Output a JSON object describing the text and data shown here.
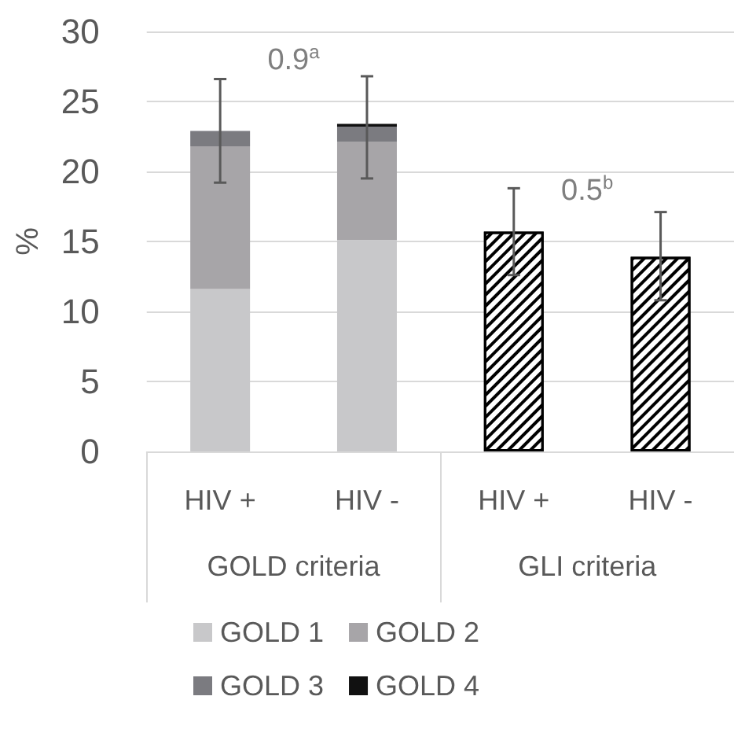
{
  "chart_data": {
    "type": "bar",
    "stacked": true,
    "ylabel": "%",
    "categories": [
      "HIV +",
      "HIV -",
      "HIV +",
      "HIV -"
    ],
    "series": [
      {
        "name": "GOLD 1",
        "color": "#c8c8ca",
        "values": [
          11.6,
          15.1,
          null,
          null
        ]
      },
      {
        "name": "GOLD 2",
        "color": "#a7a5a8",
        "values": [
          10.2,
          7.0,
          null,
          null
        ]
      },
      {
        "name": "GOLD 3",
        "color": "#7b7b80",
        "values": [
          1.1,
          1.1,
          null,
          null
        ]
      },
      {
        "name": "GOLD 4",
        "color": "#111111",
        "values": [
          0,
          0.2,
          null,
          null
        ],
        "errors": [
          [
            19.2,
            26.6
          ],
          [
            19.5,
            26.8
          ],
          null,
          null
        ]
      },
      {
        "color": "#000000",
        "values": [
          null,
          null,
          15.7,
          13.9
        ],
        "errors": [
          null,
          null,
          [
            12.6,
            18.8
          ],
          [
            10.8,
            17.1
          ]
        ]
      }
    ],
    "annotations": [
      "0.9$^{a}$",
      "0.5$^{b}$",
      "GOLD criteria",
      "GLI criteria"
    ],
    "ylim": [
      0,
      30
    ],
    "yticks": [
      0,
      5,
      10,
      15,
      20,
      25,
      30
    ],
    "grid": "y",
    "legend": "bottom"
  }
}
